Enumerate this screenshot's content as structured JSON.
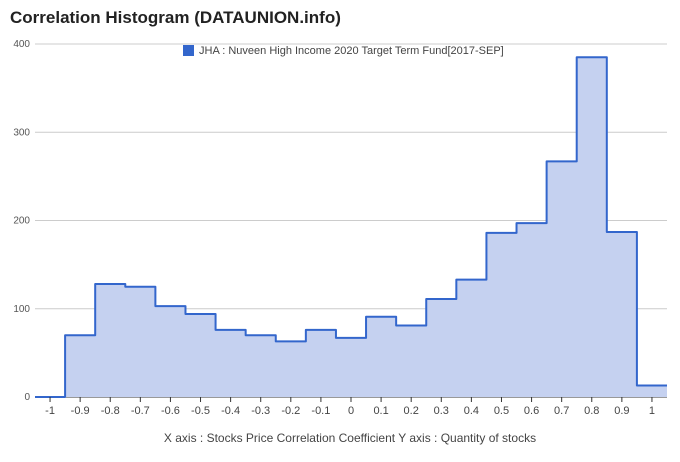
{
  "chart_data": {
    "type": "area",
    "title": "Correlation Histogram (DATAUNION.info)",
    "legend": {
      "label": "JHA : Nuveen High Income 2020 Target Term Fund[2017-SEP]",
      "color": "#3366cc",
      "placement": "top"
    },
    "series": [
      {
        "name": "JHA : Nuveen High Income 2020 Target Term Fund[2017-SEP]",
        "color": "#3366cc",
        "fill": "#c5d1f0",
        "x": [
          -1.0,
          -0.9,
          -0.8,
          -0.7,
          -0.6,
          -0.5,
          -0.4,
          -0.3,
          -0.2,
          -0.1,
          0.0,
          0.1,
          0.2,
          0.3,
          0.4,
          0.5,
          0.6,
          0.7,
          0.8,
          0.9,
          1.0
        ],
        "values": [
          0,
          70,
          128,
          125,
          103,
          94,
          76,
          70,
          63,
          76,
          67,
          91,
          81,
          111,
          133,
          186,
          197,
          267,
          385,
          187,
          13
        ]
      }
    ],
    "x_tick_labels": [
      "-1",
      "-0.9",
      "-0.8",
      "-0.7",
      "-0.6",
      "-0.5",
      "-0.4",
      "-0.3",
      "-0.2",
      "-0.1",
      "0",
      "0.1",
      "0.2",
      "0.3",
      "0.4",
      "0.5",
      "0.6",
      "0.7",
      "0.8",
      "0.9",
      "1"
    ],
    "y_ticks": [
      0,
      100,
      200,
      300,
      400
    ],
    "y_tick_labels": [
      "0",
      "100",
      "200",
      "300",
      "400"
    ],
    "ylim": [
      0,
      400
    ],
    "xlim": [
      -1.05,
      1.05
    ],
    "grid": true,
    "caption": "X axis : Stocks Price Correlation Coefficient  Y axis : Quantity of stocks"
  }
}
